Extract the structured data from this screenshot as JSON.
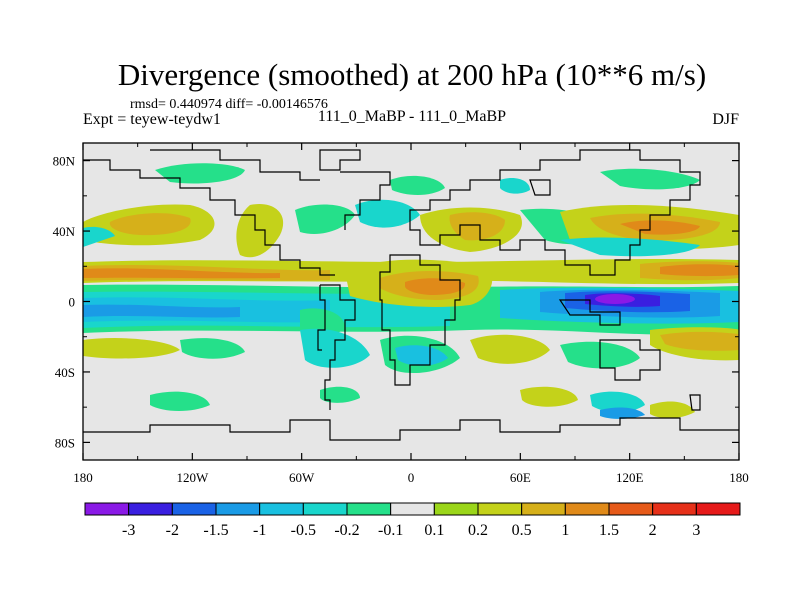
{
  "chart_data": {
    "type": "heatmap",
    "title": "Divergence (smoothed) at 200 hPa (10**6 m/s)",
    "stats_line": "rmsd= 0.440974 diff= -0.00146576",
    "expt_label": "Expt = teyew-teydw1",
    "center_label": "111_0_MaBP - 111_0_MaBP",
    "season_label": "DJF",
    "x_ticks": [
      "180",
      "120W",
      "60W",
      "0",
      "60E",
      "120E",
      "180"
    ],
    "x_tick_values": [
      -180,
      -120,
      -60,
      0,
      60,
      120,
      180
    ],
    "y_ticks": [
      "80N",
      "40N",
      "0",
      "40S",
      "80S"
    ],
    "y_tick_values": [
      80,
      40,
      0,
      -40,
      -80
    ],
    "xlim": [
      -180,
      180
    ],
    "ylim": [
      -90,
      90
    ],
    "levels": [
      -3,
      -2,
      -1.5,
      -1,
      -0.5,
      -0.2,
      -0.1,
      0.1,
      0.2,
      0.5,
      1,
      1.5,
      2,
      3
    ],
    "level_labels": [
      "-3",
      "-2",
      "-1.5",
      "-1",
      "-0.5",
      "-0.2",
      "-0.1",
      "0.1",
      "0.2",
      "0.5",
      "1",
      "1.5",
      "2",
      "3"
    ],
    "colors": [
      "#8a19e6",
      "#3a1fe0",
      "#1a62e6",
      "#1a9be6",
      "#19c0e0",
      "#19d6cc",
      "#25e08a",
      "#e6e6e6",
      "#9bd61a",
      "#c4d21a",
      "#d6b01a",
      "#e08a19",
      "#e65a19",
      "#e63019",
      "#e61a1a"
    ],
    "features": [
      {
        "name": "tropical-divergence-band",
        "lon": [
          -180,
          180
        ],
        "lat": [
          8,
          22
        ],
        "value": 1
      },
      {
        "name": "south-tropical-convergence",
        "lon": [
          -180,
          180
        ],
        "lat": [
          -22,
          -5
        ],
        "value": -0.5
      },
      {
        "name": "west-pacific-convergence-min",
        "lon": [
          100,
          135
        ],
        "lat": [
          -5,
          5
        ],
        "value": -3
      },
      {
        "name": "africa-divergence",
        "lon": [
          -20,
          40
        ],
        "lat": [
          -5,
          15
        ],
        "value": 1
      }
    ]
  }
}
